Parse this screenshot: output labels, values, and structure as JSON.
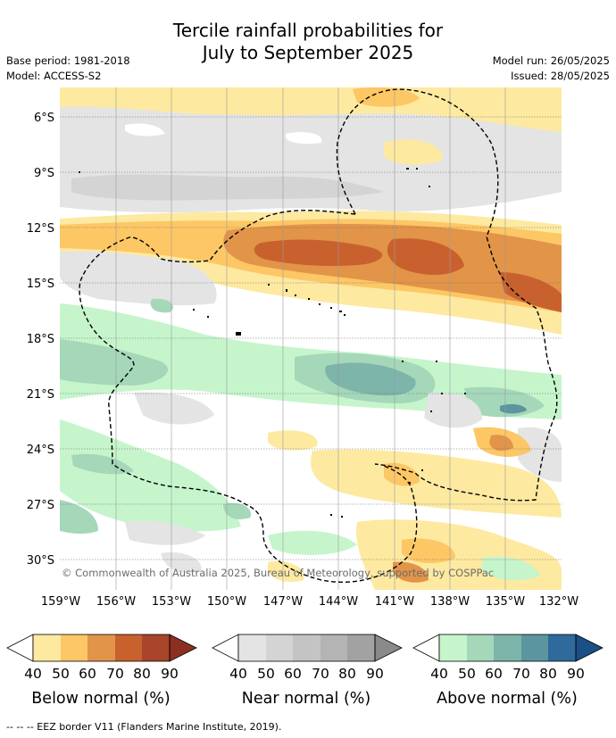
{
  "title_line1": "Tercile rainfall probabilities for",
  "title_line2": "July to September 2025",
  "base_period": "Base period: 1981-2018",
  "model": "Model: ACCESS-S2",
  "model_run": "Model run: 26/05/2025",
  "issued": "Issued: 28/05/2025",
  "copyright": "© Commonwealth of Australia 2025, Bureau of Meteorology, supported by COSPPac",
  "map": {
    "lat_labels": [
      "6°S",
      "9°S",
      "12°S",
      "15°S",
      "18°S",
      "21°S",
      "24°S",
      "27°S",
      "30°S"
    ],
    "lat_values": [
      -6,
      -9,
      -12,
      -15,
      -18,
      -21,
      -24,
      -27,
      -30
    ],
    "lon_labels": [
      "159°W",
      "156°W",
      "153°W",
      "150°W",
      "147°W",
      "144°W",
      "141°W",
      "138°W",
      "135°W",
      "132°W"
    ],
    "lon_values": [
      -159,
      -156,
      -153,
      -150,
      -147,
      -144,
      -141,
      -138,
      -135,
      -132
    ],
    "lat_range": [
      -31.5,
      -4.7
    ],
    "lon_range": [
      -159,
      -132
    ],
    "grid": true
  },
  "colorbars": [
    {
      "label": "Below normal (%)",
      "ticks": [
        "40",
        "50",
        "60",
        "70",
        "80",
        "90"
      ],
      "colors": [
        "#fde9a0",
        "#fdc765",
        "#e29448",
        "#c9612e",
        "#a8442a",
        "#8b3021"
      ]
    },
    {
      "label": "Near normal (%)",
      "ticks": [
        "40",
        "50",
        "60",
        "70",
        "80",
        "90"
      ],
      "colors": [
        "#e4e4e4",
        "#d4d4d4",
        "#c4c4c4",
        "#b4b4b4",
        "#a2a2a2",
        "#8a8a8a"
      ]
    },
    {
      "label": "Above normal (%)",
      "ticks": [
        "40",
        "50",
        "60",
        "70",
        "80",
        "90"
      ],
      "colors": [
        "#c6f5cc",
        "#a5d7b9",
        "#7db5ab",
        "#5b96a0",
        "#2f6a9c",
        "#1b4f86"
      ]
    }
  ],
  "footer": "--  --  -- EEZ border V11 (Flanders Marine Institute, 2019)."
}
